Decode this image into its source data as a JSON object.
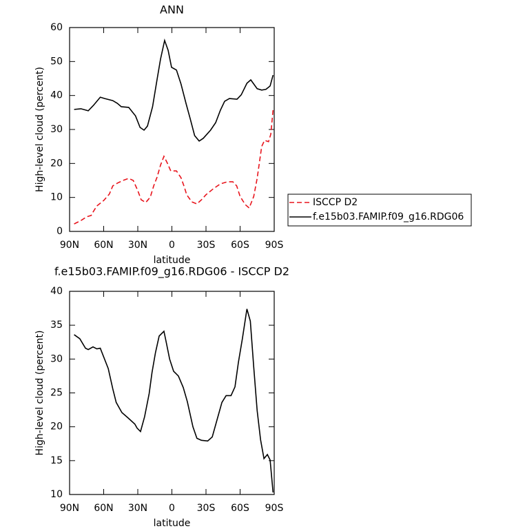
{
  "chart_data": [
    {
      "type": "line",
      "title": "ANN",
      "xlabel": "latitude",
      "ylabel": "High-level cloud (percent)",
      "xlim": [
        90,
        -90
      ],
      "ylim": [
        0,
        60
      ],
      "xticks": [
        {
          "value": 90,
          "label": "90N"
        },
        {
          "value": 60,
          "label": "60N"
        },
        {
          "value": 30,
          "label": "30N"
        },
        0,
        {
          "value": -30,
          "label": "30S"
        },
        {
          "value": -60,
          "label": "60S"
        },
        {
          "value": -90,
          "label": "90S"
        }
      ],
      "yticks": [
        0,
        10,
        20,
        30,
        40,
        50,
        60
      ],
      "legend": "right",
      "series": [
        {
          "name": "ISCCP D2",
          "color": "#e8141c",
          "line_style": "dashed",
          "x": [
            86,
            80,
            75,
            71,
            69,
            66,
            60,
            55,
            52,
            48,
            43,
            38,
            34,
            30,
            27,
            23,
            19,
            16,
            13,
            10,
            7,
            4,
            1,
            -4,
            -8,
            -11,
            -13,
            -17.5,
            -22,
            -26,
            -30,
            -36.6,
            -42.7,
            -48.8,
            -53.6,
            -57,
            -60,
            -64.5,
            -68,
            -72,
            -75,
            -79,
            -81.5,
            -85,
            -87,
            -89
          ],
          "values": [
            2.2,
            3.2,
            4.3,
            4.7,
            5.9,
            7.5,
            9.1,
            11,
            13.4,
            14.2,
            15,
            15.6,
            15,
            12,
            9.3,
            8.5,
            10.1,
            13.4,
            16,
            19.5,
            22.1,
            20.1,
            17.8,
            17.8,
            15.8,
            13,
            10.8,
            8.7,
            8.1,
            9.3,
            10.8,
            12.6,
            14,
            14.6,
            14.6,
            13.4,
            10.3,
            7.9,
            6.9,
            10.3,
            15.6,
            25,
            26.8,
            26.4,
            28.6,
            35.7
          ]
        },
        {
          "name": "f.e15b03.FAMIP.f09_g16.RDG06",
          "color": "#000000",
          "line_style": "solid",
          "x": [
            86,
            80,
            73.6,
            69,
            63,
            59,
            52,
            48,
            44.5,
            38,
            32,
            28,
            24.5,
            21.5,
            17,
            13,
            10,
            6.4,
            3.3,
            0.3,
            -4,
            -8,
            -12.4,
            -16,
            -20,
            -24,
            -27.6,
            -34,
            -38.5,
            -42.7,
            -46.4,
            -50.6,
            -57.3,
            -61,
            -66,
            -69.4,
            -75,
            -79,
            -82.7,
            -86.4,
            -89
          ],
          "values": [
            35.9,
            36.1,
            35.5,
            37.1,
            39.5,
            39.1,
            38.5,
            37.7,
            36.7,
            36.5,
            34,
            30.6,
            29.8,
            31,
            36.7,
            44.8,
            50.7,
            56.2,
            53.3,
            48.3,
            47.5,
            43.4,
            37.7,
            33.3,
            28.2,
            26.6,
            27.4,
            29.8,
            32,
            35.7,
            38.3,
            39.1,
            38.9,
            40.2,
            43.6,
            44.6,
            42,
            41.6,
            41.8,
            42.8,
            46
          ]
        }
      ]
    },
    {
      "type": "line",
      "title": "f.e15b03.FAMIP.f09_g16.RDG06 - ISCCP D2",
      "xlabel": "latitude",
      "ylabel": "High-level cloud (percent)",
      "xlim": [
        90,
        -90
      ],
      "ylim": [
        10,
        40
      ],
      "xticks": [
        {
          "value": 90,
          "label": "90N"
        },
        {
          "value": 60,
          "label": "60N"
        },
        {
          "value": 30,
          "label": "30N"
        },
        0,
        {
          "value": -30,
          "label": "30S"
        },
        {
          "value": -60,
          "label": "60S"
        },
        {
          "value": -90,
          "label": "90S"
        }
      ],
      "yticks": [
        10,
        15,
        20,
        25,
        30,
        35,
        40
      ],
      "series": [
        {
          "color": "#000000",
          "line_style": "solid",
          "x": [
            86,
            81,
            76,
            73.6,
            69.4,
            66,
            63,
            56,
            52,
            49,
            44,
            38.5,
            32.6,
            30.6,
            27.6,
            24,
            20,
            17.5,
            14.5,
            11.2,
            7,
            5,
            2,
            -1.5,
            -5.7,
            -10,
            -13.6,
            -18.5,
            -22,
            -26,
            -31.5,
            -35.5,
            -40,
            -44,
            -47.7,
            -52,
            -55.5,
            -58.5,
            -62,
            -66,
            -69,
            -72,
            -75,
            -78,
            -81,
            -84,
            -86.4,
            -89
          ],
          "values": [
            33.6,
            33,
            31.6,
            31.4,
            31.8,
            31.5,
            31.6,
            28.6,
            25.6,
            23.6,
            22.1,
            21.3,
            20.4,
            19.8,
            19.3,
            21.5,
            24.9,
            28,
            30.9,
            33.4,
            34.1,
            32.5,
            30,
            28.2,
            27.5,
            25.8,
            23.7,
            20,
            18.3,
            18,
            17.9,
            18.5,
            21.2,
            23.6,
            24.6,
            24.6,
            25.9,
            29.5,
            33,
            37.4,
            35.6,
            28.8,
            22.4,
            18.1,
            15.3,
            15.9,
            15.1,
            10.3
          ]
        }
      ]
    }
  ]
}
